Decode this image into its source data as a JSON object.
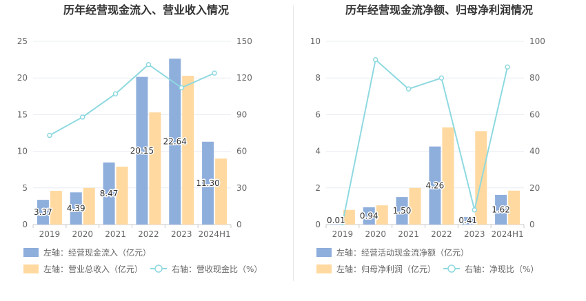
{
  "colors": {
    "bar1": "#8eaedc",
    "bar2": "#ffd9a0",
    "line": "#8ed9e0",
    "grid": "#e8ecf2",
    "axis": "#c8c8c8"
  },
  "chart_data": [
    {
      "type": "bar",
      "title": "历年经营现金流入、营业收入情况",
      "categories": [
        "2019",
        "2020",
        "2021",
        "2022",
        "2023",
        "2024H1"
      ],
      "left_axis": {
        "min": 0,
        "max": 25,
        "ticks": [
          "0",
          "5",
          "10",
          "15",
          "20",
          "25"
        ]
      },
      "right_axis": {
        "min": 0,
        "max": 150,
        "ticks": [
          "0",
          "30",
          "60",
          "90",
          "120",
          "150"
        ]
      },
      "series": [
        {
          "name": "左轴：经营现金流入（亿元）",
          "kind": "bar",
          "axis": "left",
          "values": [
            3.37,
            4.39,
            8.47,
            20.15,
            22.64,
            11.3
          ],
          "labels": [
            "3.37",
            "4.39",
            "8.47",
            "20.15",
            "22.64",
            "11.30"
          ]
        },
        {
          "name": "左轴：营业总收入（亿元）",
          "kind": "bar",
          "axis": "left",
          "values": [
            4.6,
            5.0,
            7.9,
            15.3,
            20.3,
            9.0
          ]
        },
        {
          "name": "右轴：营收现金比（%）",
          "kind": "line",
          "axis": "right",
          "values": [
            73,
            88,
            107,
            131,
            112,
            124
          ]
        }
      ],
      "grid": true,
      "legend_position": "bottom-left"
    },
    {
      "type": "bar",
      "title": "历年经营现金流净额、归母净利润情况",
      "categories": [
        "2019",
        "2020",
        "2021",
        "2022",
        "2023",
        "2024H1"
      ],
      "left_axis": {
        "min": 0,
        "max": 10,
        "ticks": [
          "0",
          "2",
          "4",
          "6",
          "8",
          "10"
        ]
      },
      "right_axis": {
        "min": 0,
        "max": 100,
        "ticks": [
          "0",
          "20",
          "40",
          "60",
          "80",
          "100"
        ]
      },
      "series": [
        {
          "name": "左轴：经营活动现金流净额（亿元）",
          "kind": "bar",
          "axis": "left",
          "values": [
            0.01,
            0.94,
            1.5,
            4.26,
            0.41,
            1.62
          ],
          "labels": [
            "0.01",
            "0.94",
            "1.50",
            "4.26",
            "0.41",
            "1.62"
          ]
        },
        {
          "name": "左轴：归母净利润（亿元）",
          "kind": "bar",
          "axis": "left",
          "values": [
            0.8,
            1.05,
            2.0,
            5.3,
            5.1,
            1.85
          ]
        },
        {
          "name": "右轴：净现比（%）",
          "kind": "line",
          "axis": "right",
          "values": [
            1,
            90,
            74,
            80,
            8,
            86
          ]
        }
      ],
      "grid": true,
      "legend_position": "bottom-left"
    }
  ]
}
